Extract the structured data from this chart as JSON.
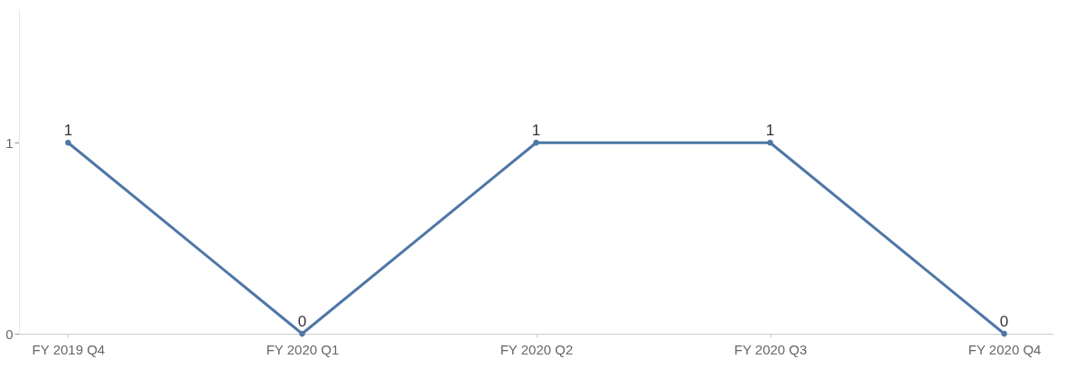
{
  "chart_data": {
    "type": "line",
    "categories": [
      "FY 2019 Q4",
      "FY 2020 Q1",
      "FY 2020 Q2",
      "FY 2020 Q3",
      "FY 2020 Q4"
    ],
    "series": [
      {
        "color": "#4e77a5",
        "values": [
          1,
          0,
          1,
          1,
          0
        ]
      }
    ],
    "ylim": [
      0,
      1.7
    ],
    "yticks": [
      0,
      1
    ],
    "data_labels": true,
    "marker": "circle",
    "grid": false,
    "legend": false
  }
}
